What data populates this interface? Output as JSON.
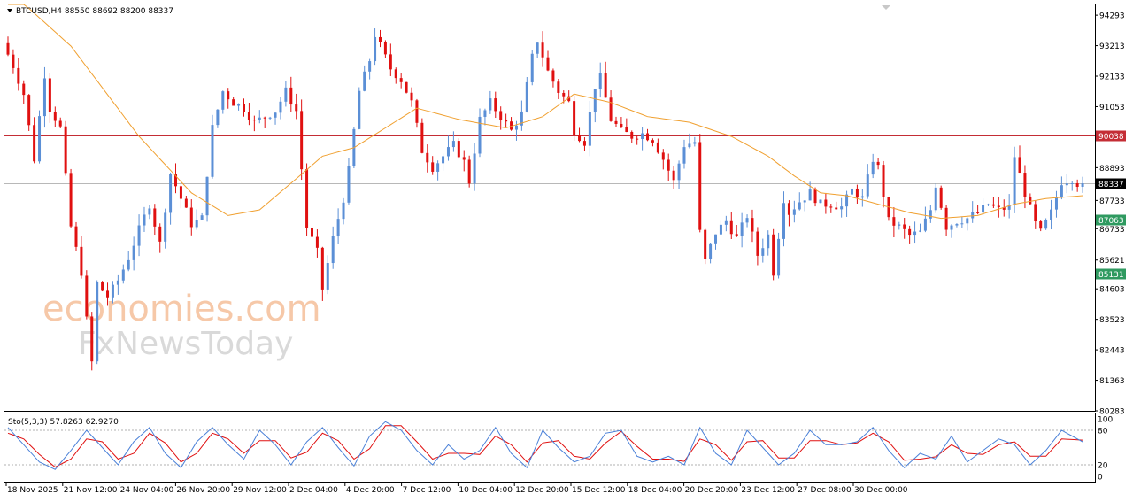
{
  "header": {
    "symbol_title": "BTCUSD,H4  88550 88692 88200 88337",
    "indicator_title": "Sto(5,3,3) 57.8263 62.9270"
  },
  "watermark": {
    "line1": "economies.com",
    "line2": "FxNewsToday",
    "color1": "#f6c8a8",
    "color2": "#d9d9d9"
  },
  "colors": {
    "bull": "#5b8fd6",
    "bear": "#e01010",
    "ma": "#f0a030",
    "resistance": "#c42d35",
    "support": "#2f9a60",
    "stoch_k": "#4a80d8",
    "stoch_d": "#e01010"
  },
  "chart_data": {
    "type": "candlestick",
    "symbol": "BTCUSD",
    "timeframe": "H4",
    "ohlc_current": {
      "open": 88550,
      "high": 88692,
      "low": 88200,
      "close": 88337
    },
    "y_ticks": [
      "94293",
      "93213",
      "92133",
      "91053",
      "88893",
      "87733",
      "86733",
      "85621",
      "84603",
      "83523",
      "82443",
      "81363",
      "80283"
    ],
    "y_range": [
      80283,
      94673
    ],
    "x_ticks": [
      "18 Nov 2025",
      "21 Nov 12:00",
      "24 Nov 04:00",
      "26 Nov 20:00",
      "29 Nov 12:00",
      "2 Dec 04:00",
      "4 Dec 20:00",
      "7 Dec 12:00",
      "10 Dec 04:00",
      "12 Dec 20:00",
      "15 Dec 12:00",
      "18 Dec 04:00",
      "20 Dec 20:00",
      "23 Dec 12:00",
      "27 Dec 08:00",
      "30 Dec 00:00"
    ],
    "levels": [
      {
        "label": "90038",
        "value": 90038,
        "role": "resistance"
      },
      {
        "label": "88337",
        "value": 88337,
        "role": "current"
      },
      {
        "label": "87063",
        "value": 87063,
        "role": "support"
      },
      {
        "label": "85131",
        "value": 85131,
        "role": "support"
      }
    ],
    "price_path": [
      [
        0,
        93300
      ],
      [
        2,
        92500
      ],
      [
        4,
        91500
      ],
      [
        6,
        89200
      ],
      [
        8,
        92200
      ],
      [
        9,
        91000
      ],
      [
        11,
        90300
      ],
      [
        13,
        86800
      ],
      [
        15,
        85200
      ],
      [
        16,
        83500
      ],
      [
        17,
        82000
      ],
      [
        18,
        84800
      ],
      [
        20,
        84300
      ],
      [
        22,
        84900
      ],
      [
        24,
        85700
      ],
      [
        26,
        86700
      ],
      [
        28,
        87600
      ],
      [
        30,
        86200
      ],
      [
        32,
        88700
      ],
      [
        34,
        87800
      ],
      [
        36,
        86900
      ],
      [
        38,
        87100
      ],
      [
        40,
        90300
      ],
      [
        42,
        91600
      ],
      [
        44,
        91200
      ],
      [
        46,
        91000
      ],
      [
        48,
        90500
      ],
      [
        50,
        90700
      ],
      [
        52,
        90900
      ],
      [
        54,
        91600
      ],
      [
        56,
        90900
      ],
      [
        58,
        86800
      ],
      [
        60,
        85900
      ],
      [
        61,
        84600
      ],
      [
        63,
        86400
      ],
      [
        65,
        87800
      ],
      [
        66,
        88800
      ],
      [
        68,
        91600
      ],
      [
        70,
        92700
      ],
      [
        71,
        93600
      ],
      [
        72,
        93200
      ],
      [
        74,
        92400
      ],
      [
        76,
        92000
      ],
      [
        78,
        91200
      ],
      [
        80,
        89500
      ],
      [
        82,
        88900
      ],
      [
        84,
        89300
      ],
      [
        86,
        89700
      ],
      [
        88,
        89100
      ],
      [
        89,
        88400
      ],
      [
        91,
        90600
      ],
      [
        93,
        91200
      ],
      [
        95,
        90700
      ],
      [
        97,
        90200
      ],
      [
        99,
        90800
      ],
      [
        101,
        92800
      ],
      [
        102,
        93400
      ],
      [
        104,
        92300
      ],
      [
        106,
        91600
      ],
      [
        108,
        91200
      ],
      [
        109,
        90200
      ],
      [
        111,
        89800
      ],
      [
        113,
        91800
      ],
      [
        114,
        92100
      ],
      [
        116,
        90600
      ],
      [
        118,
        90200
      ],
      [
        120,
        90000
      ],
      [
        122,
        90100
      ],
      [
        124,
        89900
      ],
      [
        126,
        89200
      ],
      [
        128,
        88400
      ],
      [
        130,
        89700
      ],
      [
        132,
        89800
      ],
      [
        133,
        86600
      ],
      [
        134,
        85600
      ],
      [
        136,
        86600
      ],
      [
        138,
        87000
      ],
      [
        140,
        86400
      ],
      [
        142,
        87200
      ],
      [
        144,
        85800
      ],
      [
        146,
        86500
      ],
      [
        147,
        85200
      ],
      [
        149,
        87800
      ],
      [
        150,
        87300
      ],
      [
        152,
        87700
      ],
      [
        154,
        88000
      ],
      [
        156,
        87600
      ],
      [
        158,
        87600
      ],
      [
        160,
        87500
      ],
      [
        162,
        88100
      ],
      [
        164,
        87800
      ],
      [
        166,
        89200
      ],
      [
        167,
        88900
      ],
      [
        169,
        87000
      ],
      [
        171,
        86800
      ],
      [
        173,
        86500
      ],
      [
        175,
        86600
      ],
      [
        177,
        87400
      ],
      [
        178,
        88300
      ],
      [
        180,
        86800
      ],
      [
        182,
        87000
      ],
      [
        184,
        87100
      ],
      [
        186,
        87300
      ],
      [
        188,
        87600
      ],
      [
        190,
        87400
      ],
      [
        192,
        87500
      ],
      [
        193,
        89300
      ],
      [
        195,
        88000
      ],
      [
        197,
        86900
      ],
      [
        198,
        86600
      ],
      [
        200,
        87300
      ],
      [
        202,
        88400
      ],
      [
        204,
        88500
      ],
      [
        205,
        88337
      ]
    ],
    "ma_path": [
      [
        0,
        95200
      ],
      [
        12,
        93200
      ],
      [
        25,
        90000
      ],
      [
        35,
        88000
      ],
      [
        42,
        87200
      ],
      [
        48,
        87400
      ],
      [
        55,
        88500
      ],
      [
        60,
        89300
      ],
      [
        66,
        89600
      ],
      [
        72,
        90300
      ],
      [
        78,
        91000
      ],
      [
        86,
        90600
      ],
      [
        95,
        90300
      ],
      [
        102,
        90700
      ],
      [
        108,
        91500
      ],
      [
        115,
        91200
      ],
      [
        122,
        90700
      ],
      [
        130,
        90500
      ],
      [
        138,
        90000
      ],
      [
        145,
        89300
      ],
      [
        150,
        88600
      ],
      [
        155,
        88000
      ],
      [
        160,
        87900
      ],
      [
        166,
        87600
      ],
      [
        172,
        87300
      ],
      [
        178,
        87100
      ],
      [
        185,
        87200
      ],
      [
        192,
        87600
      ],
      [
        198,
        87800
      ],
      [
        205,
        87900
      ]
    ],
    "stochastic": {
      "label": "Sto(5,3,3)",
      "k": 57.8263,
      "d": 62.927,
      "y_ticks": [
        "100",
        "80",
        "20",
        "0"
      ],
      "levels": [
        80,
        20
      ],
      "k_path": [
        [
          0,
          85
        ],
        [
          3,
          55
        ],
        [
          6,
          25
        ],
        [
          9,
          12
        ],
        [
          12,
          45
        ],
        [
          15,
          80
        ],
        [
          18,
          50
        ],
        [
          21,
          20
        ],
        [
          24,
          60
        ],
        [
          27,
          85
        ],
        [
          30,
          40
        ],
        [
          33,
          15
        ],
        [
          36,
          60
        ],
        [
          39,
          85
        ],
        [
          42,
          55
        ],
        [
          45,
          30
        ],
        [
          48,
          80
        ],
        [
          51,
          55
        ],
        [
          54,
          20
        ],
        [
          57,
          60
        ],
        [
          60,
          85
        ],
        [
          63,
          50
        ],
        [
          66,
          18
        ],
        [
          69,
          70
        ],
        [
          72,
          95
        ],
        [
          75,
          80
        ],
        [
          78,
          45
        ],
        [
          81,
          20
        ],
        [
          84,
          55
        ],
        [
          87,
          30
        ],
        [
          90,
          45
        ],
        [
          93,
          85
        ],
        [
          96,
          40
        ],
        [
          99,
          15
        ],
        [
          102,
          80
        ],
        [
          105,
          50
        ],
        [
          108,
          25
        ],
        [
          111,
          35
        ],
        [
          114,
          75
        ],
        [
          117,
          80
        ],
        [
          120,
          35
        ],
        [
          123,
          25
        ],
        [
          126,
          35
        ],
        [
          129,
          20
        ],
        [
          132,
          85
        ],
        [
          135,
          40
        ],
        [
          138,
          20
        ],
        [
          141,
          80
        ],
        [
          144,
          50
        ],
        [
          147,
          20
        ],
        [
          150,
          40
        ],
        [
          153,
          80
        ],
        [
          156,
          55
        ],
        [
          159,
          55
        ],
        [
          162,
          60
        ],
        [
          165,
          85
        ],
        [
          168,
          45
        ],
        [
          171,
          15
        ],
        [
          174,
          40
        ],
        [
          177,
          30
        ],
        [
          180,
          70
        ],
        [
          183,
          25
        ],
        [
          186,
          45
        ],
        [
          189,
          65
        ],
        [
          192,
          55
        ],
        [
          195,
          20
        ],
        [
          198,
          45
        ],
        [
          201,
          80
        ],
        [
          205,
          60
        ]
      ],
      "d_path": [
        [
          0,
          75
        ],
        [
          3,
          65
        ],
        [
          6,
          38
        ],
        [
          9,
          16
        ],
        [
          12,
          30
        ],
        [
          15,
          65
        ],
        [
          18,
          60
        ],
        [
          21,
          30
        ],
        [
          24,
          40
        ],
        [
          27,
          75
        ],
        [
          30,
          58
        ],
        [
          33,
          25
        ],
        [
          36,
          40
        ],
        [
          39,
          75
        ],
        [
          42,
          65
        ],
        [
          45,
          40
        ],
        [
          48,
          62
        ],
        [
          51,
          62
        ],
        [
          54,
          32
        ],
        [
          57,
          42
        ],
        [
          60,
          75
        ],
        [
          63,
          62
        ],
        [
          66,
          30
        ],
        [
          69,
          48
        ],
        [
          72,
          88
        ],
        [
          75,
          88
        ],
        [
          78,
          60
        ],
        [
          81,
          30
        ],
        [
          84,
          40
        ],
        [
          87,
          40
        ],
        [
          90,
          38
        ],
        [
          93,
          70
        ],
        [
          96,
          55
        ],
        [
          99,
          25
        ],
        [
          102,
          58
        ],
        [
          105,
          62
        ],
        [
          108,
          35
        ],
        [
          111,
          30
        ],
        [
          114,
          58
        ],
        [
          117,
          78
        ],
        [
          120,
          52
        ],
        [
          123,
          30
        ],
        [
          126,
          30
        ],
        [
          129,
          26
        ],
        [
          132,
          65
        ],
        [
          135,
          55
        ],
        [
          138,
          28
        ],
        [
          141,
          60
        ],
        [
          144,
          62
        ],
        [
          147,
          32
        ],
        [
          150,
          32
        ],
        [
          153,
          62
        ],
        [
          156,
          62
        ],
        [
          159,
          55
        ],
        [
          162,
          58
        ],
        [
          165,
          75
        ],
        [
          168,
          60
        ],
        [
          171,
          28
        ],
        [
          174,
          30
        ],
        [
          177,
          34
        ],
        [
          180,
          55
        ],
        [
          183,
          40
        ],
        [
          186,
          38
        ],
        [
          189,
          55
        ],
        [
          192,
          60
        ],
        [
          195,
          35
        ],
        [
          198,
          35
        ],
        [
          201,
          65
        ],
        [
          205,
          63
        ]
      ]
    }
  }
}
